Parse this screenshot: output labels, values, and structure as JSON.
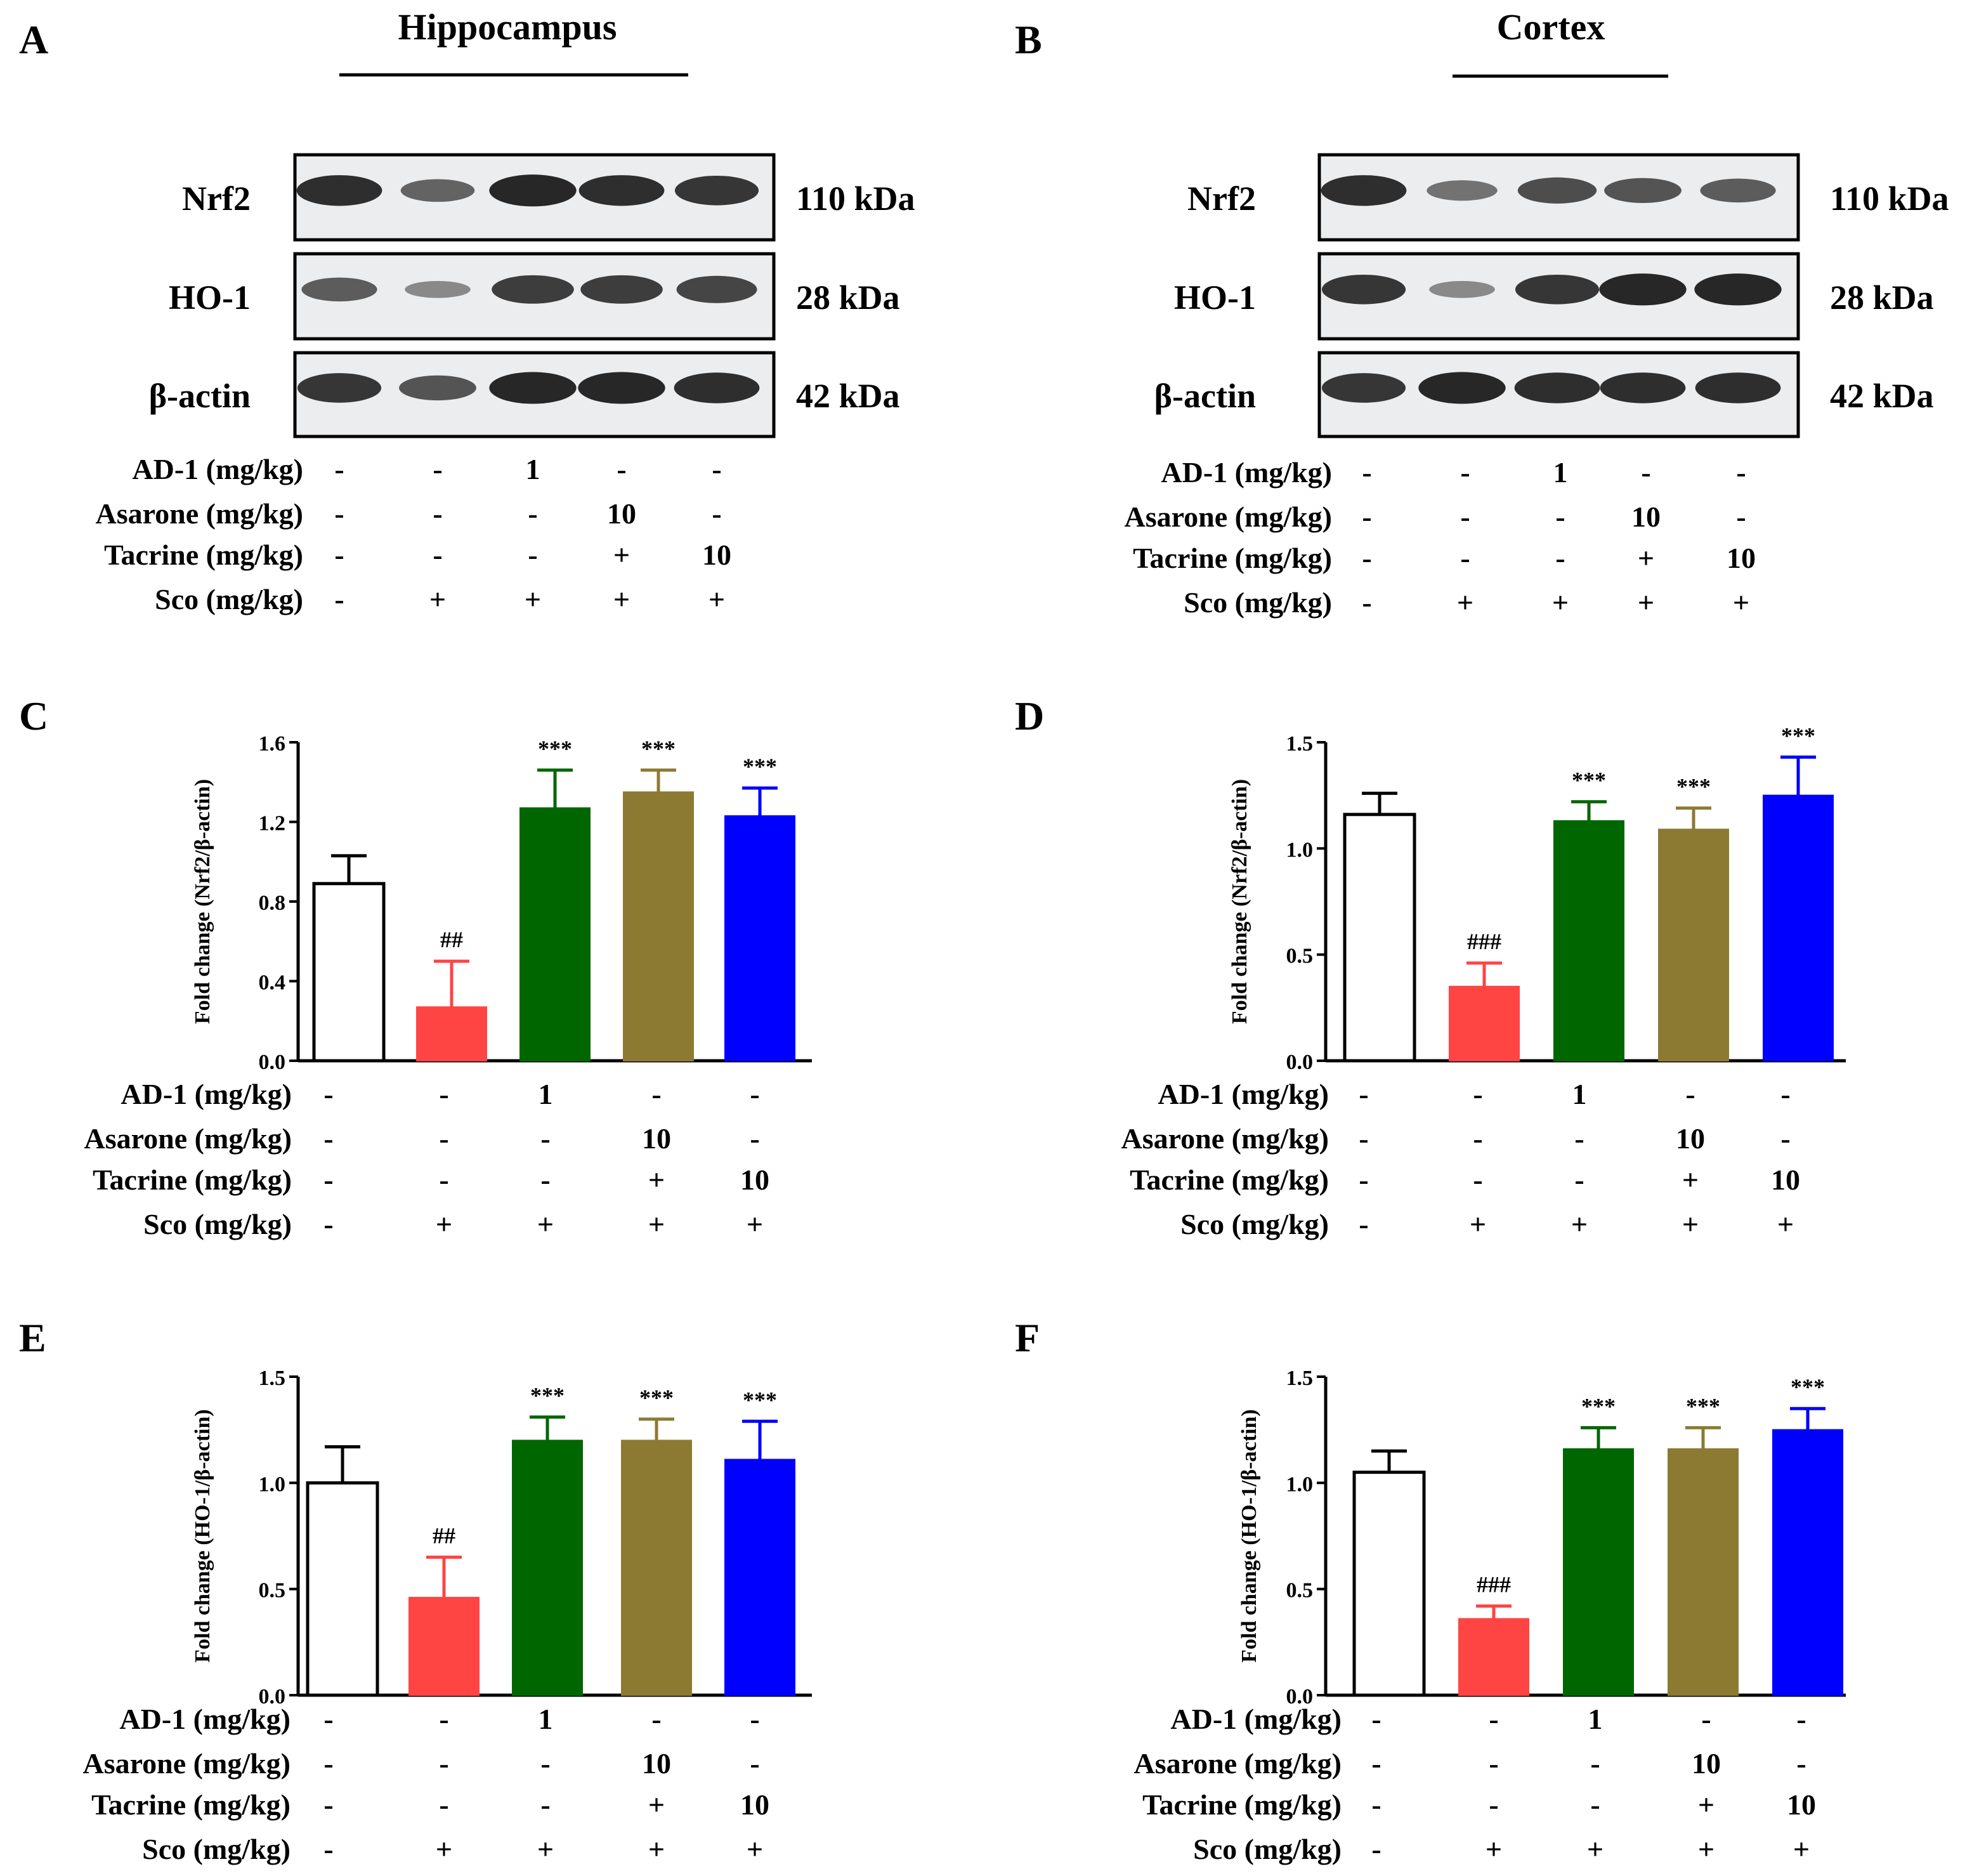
{
  "figure": {
    "panels": [
      "A",
      "B",
      "C",
      "D",
      "E",
      "F"
    ],
    "region_titles": [
      "Hippocampus",
      "Cortex"
    ]
  },
  "blots": [
    {
      "panel": "A",
      "region": "Hippocampus",
      "rows": [
        {
          "protein": "Nrf2",
          "size": "110 kDa",
          "band_intensity": [
            0.9,
            0.55,
            0.95,
            0.9,
            0.85
          ]
        },
        {
          "protein": "HO-1",
          "size": "28 kDa",
          "band_intensity": [
            0.6,
            0.3,
            0.8,
            0.8,
            0.75
          ]
        },
        {
          "protein": "β-actin",
          "size": "42 kDa",
          "band_intensity": [
            0.85,
            0.65,
            0.95,
            0.95,
            0.9
          ]
        }
      ]
    },
    {
      "panel": "B",
      "region": "Cortex",
      "rows": [
        {
          "protein": "Nrf2",
          "size": "110 kDa",
          "band_intensity": [
            0.9,
            0.45,
            0.7,
            0.65,
            0.6
          ]
        },
        {
          "protein": "HO-1",
          "size": "28 kDa",
          "band_intensity": [
            0.85,
            0.3,
            0.85,
            0.95,
            0.95
          ]
        },
        {
          "protein": "β-actin",
          "size": "42 kDa",
          "band_intensity": [
            0.85,
            0.95,
            0.9,
            0.9,
            0.9
          ]
        }
      ]
    }
  ],
  "treatment_table": {
    "rows": [
      {
        "label": "AD-1 (mg/kg)",
        "values": [
          "-",
          "-",
          "1",
          "-",
          "-"
        ]
      },
      {
        "label": "Asarone (mg/kg)",
        "values": [
          "-",
          "-",
          "-",
          "10",
          "-"
        ]
      },
      {
        "label": "Tacrine (mg/kg)",
        "values": [
          "-",
          "-",
          "-",
          "+",
          "10"
        ]
      },
      {
        "label": "Sco (mg/kg)",
        "values": [
          "-",
          "+",
          "+",
          "+",
          "+"
        ]
      }
    ]
  },
  "colors": {
    "bars": [
      "#ffffff",
      "#ff4444",
      "#006600",
      "#8c7a33",
      "#0000ff"
    ],
    "axis": "#000000"
  },
  "chart_data": [
    {
      "panel": "C",
      "type": "bar",
      "region": "Hippocampus",
      "ylabel": "Fold change (Nrf2/β-actin)",
      "ylim": [
        0,
        1.6
      ],
      "yticks": [
        "0.0",
        "0.4",
        "0.8",
        "1.2",
        "1.6"
      ],
      "values": [
        0.89,
        0.27,
        1.27,
        1.35,
        1.23
      ],
      "errors": [
        0.14,
        0.23,
        0.19,
        0.11,
        0.14
      ],
      "annotations": [
        "",
        "##",
        "***",
        "***",
        "***"
      ]
    },
    {
      "panel": "D",
      "type": "bar",
      "region": "Cortex",
      "ylabel": "Fold change (Nrf2/β-actin)",
      "ylim": [
        0,
        1.5
      ],
      "yticks": [
        "0.0",
        "0.5",
        "1.0",
        "1.5"
      ],
      "values": [
        1.16,
        0.35,
        1.13,
        1.09,
        1.25
      ],
      "errors": [
        0.1,
        0.11,
        0.09,
        0.1,
        0.18
      ],
      "annotations": [
        "",
        "###",
        "***",
        "***",
        "***"
      ]
    },
    {
      "panel": "E",
      "type": "bar",
      "region": "Hippocampus",
      "ylabel": "Fold change (HO-1/β-actin)",
      "ylim": [
        0,
        1.5
      ],
      "yticks": [
        "0.0",
        "0.5",
        "1.0",
        "1.5"
      ],
      "values": [
        1.0,
        0.46,
        1.2,
        1.2,
        1.11
      ],
      "errors": [
        0.17,
        0.19,
        0.11,
        0.1,
        0.18
      ],
      "annotations": [
        "",
        "##",
        "***",
        "***",
        "***"
      ]
    },
    {
      "panel": "F",
      "type": "bar",
      "region": "Cortex",
      "ylabel": "Fold change (HO-1/β-actin)",
      "ylim": [
        0,
        1.5
      ],
      "yticks": [
        "0.0",
        "0.5",
        "1.0",
        "1.5"
      ],
      "values": [
        1.05,
        0.36,
        1.16,
        1.16,
        1.25
      ],
      "errors": [
        0.1,
        0.06,
        0.1,
        0.1,
        0.1
      ],
      "annotations": [
        "",
        "###",
        "***",
        "***",
        "***"
      ]
    }
  ]
}
